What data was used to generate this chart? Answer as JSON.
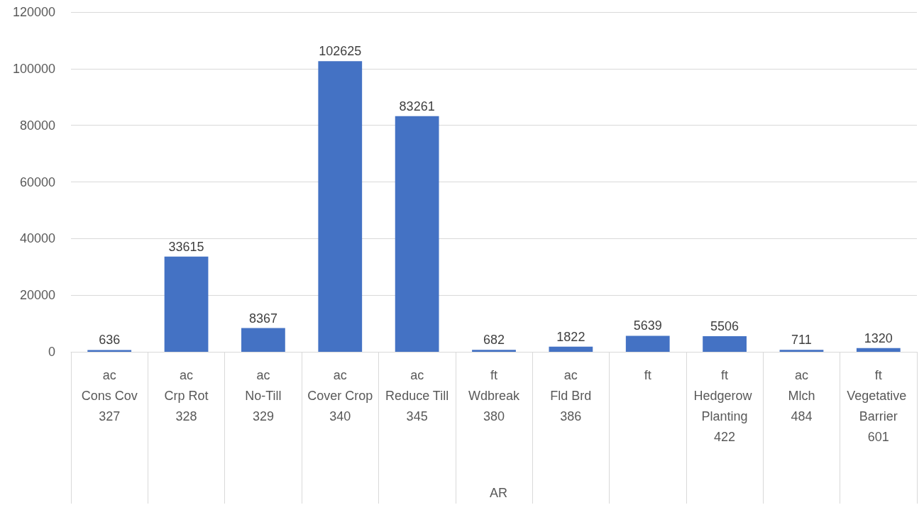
{
  "chart_data": {
    "type": "bar",
    "categories": [
      "ac\nCons Cov\n327",
      "ac\nCrp Rot\n328",
      "ac\nNo-Till\n329",
      "ac\nCover Crop\n340",
      "ac\nReduce Till\n345",
      "ft\nWdbreak\n380",
      "ac\nFld Brd\n386",
      "ft",
      "ft\nHedgerow Planting\n422",
      "ac\nMlch\n484",
      "ft\nVegetative Barrier\n601"
    ],
    "values": [
      636,
      33615,
      8367,
      102625,
      83261,
      682,
      1822,
      5639,
      5506,
      711,
      1320
    ],
    "color": "#4472c4",
    "ylim": [
      0,
      120000
    ],
    "yticks": [
      0,
      20000,
      40000,
      60000,
      80000,
      100000,
      120000
    ],
    "grid": "y",
    "data_labels": true,
    "annotations": [
      "AR"
    ]
  }
}
